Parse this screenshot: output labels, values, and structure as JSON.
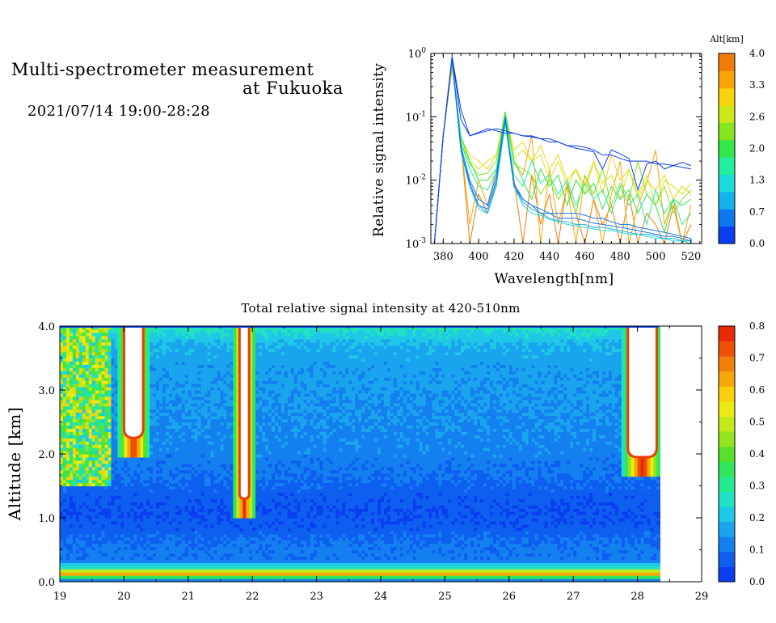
{
  "header": {
    "title_line1": "Multi-spectrometer measurement",
    "title_line2": "at Fukuoka",
    "datetime": "2021/07/14 19:00-28:28"
  },
  "chart_data": [
    {
      "type": "line",
      "xlabel": "Wavelength[nm]",
      "ylabel": "Relative signal intensity",
      "x_ticks": [
        "380",
        "400",
        "420",
        "440",
        "460",
        "480",
        "500",
        "520"
      ],
      "xlim": [
        373,
        526
      ],
      "y_scale": "log",
      "ylim": [
        0.001,
        1
      ],
      "y_ticks": [
        {
          "base": "10",
          "exp": "-3",
          "value": 0.001
        },
        {
          "base": "10",
          "exp": "-2",
          "value": 0.01
        },
        {
          "base": "10",
          "exp": "-1",
          "value": 0.1
        },
        {
          "base": "10",
          "exp": "0",
          "value": 1
        }
      ],
      "colorbar": {
        "title": "Alt[km]",
        "ticks": [
          "0.0",
          "0.7",
          "1.3",
          "2.0",
          "2.6",
          "3.3",
          "4.0"
        ],
        "colors": [
          "#0a3ff0",
          "#0e78f0",
          "#14b2ec",
          "#1adcd8",
          "#22ee9e",
          "#34e64a",
          "#84e61e",
          "#cce818",
          "#f8d20a",
          "#f6a408",
          "#f07c08"
        ]
      },
      "x": [
        375,
        380,
        385,
        390,
        395,
        400,
        405,
        410,
        415,
        420,
        425,
        430,
        435,
        440,
        445,
        450,
        455,
        460,
        465,
        470,
        475,
        480,
        485,
        490,
        495,
        500,
        505,
        510,
        515,
        520
      ],
      "series": [
        {
          "altitude_km": 0.0,
          "color": "#0a3ff0",
          "values": [
            0.001,
            0.05,
            0.9,
            0.13,
            0.05,
            0.055,
            0.06,
            0.065,
            0.06,
            0.055,
            0.05,
            0.05,
            0.045,
            0.045,
            0.04,
            0.035,
            0.035,
            0.033,
            0.03,
            0.025,
            0.025,
            0.022,
            0.02,
            0.02,
            0.02,
            0.018,
            0.018,
            0.017,
            0.016,
            0.015
          ]
        },
        {
          "altitude_km": 0.0,
          "color": "#0a3ff0",
          "values": [
            0.001,
            0.05,
            0.9,
            0.09,
            0.05,
            0.057,
            0.065,
            0.06,
            0.055,
            0.055,
            0.05,
            0.048,
            0.045,
            0.04,
            0.04,
            0.035,
            0.032,
            0.03,
            0.028,
            0.015,
            0.03,
            0.026,
            0.022,
            0.007,
            0.018,
            0.02,
            0.015,
            0.017,
            0.019,
            0.017
          ]
        },
        {
          "altitude_km": 0.2,
          "color": "#0e78f0",
          "values": [
            0.001,
            0.05,
            0.85,
            0.035,
            0.01,
            0.005,
            0.004,
            0.012,
            0.1,
            0.008,
            0.005,
            0.004,
            0.0035,
            0.003,
            0.003,
            0.003,
            0.003,
            0.0028,
            0.0025,
            0.0025,
            0.0022,
            0.002,
            0.002,
            0.0018,
            0.0017,
            0.0016,
            0.0015,
            0.0014,
            0.0013,
            0.0012
          ]
        },
        {
          "altitude_km": 0.4,
          "color": "#0e78f0",
          "values": [
            0.001,
            0.05,
            0.85,
            0.03,
            0.009,
            0.004,
            0.0035,
            0.01,
            0.09,
            0.009,
            0.005,
            0.004,
            0.003,
            0.003,
            0.0025,
            0.0025,
            0.0025,
            0.0023,
            0.0021,
            0.002,
            0.0019,
            0.0018,
            0.0017,
            0.0016,
            0.0015,
            0.0014,
            0.0013,
            0.0013,
            0.0012,
            0.0011
          ]
        },
        {
          "altitude_km": 0.7,
          "color": "#14b2ec",
          "values": [
            0.001,
            0.05,
            0.8,
            0.03,
            0.008,
            0.004,
            0.003,
            0.009,
            0.085,
            0.008,
            0.0045,
            0.0035,
            0.003,
            0.0025,
            0.0023,
            0.0022,
            0.002,
            0.002,
            0.0018,
            0.0018,
            0.0017,
            0.0016,
            0.0015,
            0.0014,
            0.0014,
            0.0013,
            0.0012,
            0.0012,
            0.0011,
            0.0011
          ]
        },
        {
          "altitude_km": 1.0,
          "color": "#1adcd8",
          "values": [
            0.001,
            0.05,
            0.8,
            0.028,
            0.008,
            0.0035,
            0.003,
            0.008,
            0.08,
            0.008,
            0.004,
            0.003,
            0.0028,
            0.0024,
            0.0022,
            0.002,
            0.0019,
            0.0018,
            0.0017,
            0.0016,
            0.0016,
            0.0015,
            0.0014,
            0.0014,
            0.0013,
            0.0012,
            0.0012,
            0.0011,
            0.0011,
            0.001
          ]
        },
        {
          "altitude_km": 1.5,
          "color": "#22ee9e",
          "values": [
            0.001,
            0.05,
            0.8,
            0.04,
            0.015,
            0.008,
            0.007,
            0.014,
            0.1,
            0.012,
            0.008,
            0.02,
            0.009,
            0.012,
            0.006,
            0.01,
            0.004,
            0.009,
            0.005,
            0.007,
            0.003,
            0.008,
            0.004,
            0.006,
            0.002,
            0.007,
            0.003,
            0.005,
            0.002,
            0.003
          ]
        },
        {
          "altitude_km": 1.8,
          "color": "#34e64a",
          "values": [
            0.001,
            0.05,
            0.75,
            0.05,
            0.02,
            0.01,
            0.01,
            0.015,
            0.12,
            0.02,
            0.01,
            0.005,
            0.015,
            0.008,
            0.012,
            0.004,
            0.01,
            0.006,
            0.009,
            0.0035,
            0.008,
            0.005,
            0.007,
            0.003,
            0.006,
            0.004,
            0.0015,
            0.005,
            0.004,
            0.005
          ]
        },
        {
          "altitude_km": 2.2,
          "color": "#84e61e",
          "values": [
            0.001,
            0.05,
            0.75,
            0.04,
            0.018,
            0.012,
            0.013,
            0.02,
            0.11,
            0.018,
            0.015,
            0.012,
            0.006,
            0.01,
            0.005,
            0.008,
            0.003,
            0.012,
            0.006,
            0.015,
            0.004,
            0.009,
            0.005,
            0.02,
            0.006,
            0.004,
            0.008,
            0.003,
            0.005,
            0.007
          ]
        },
        {
          "altitude_km": 2.5,
          "color": "#cce818",
          "values": [
            0.001,
            0.05,
            0.7,
            0.045,
            0.02,
            0.015,
            0.02,
            0.025,
            0.12,
            0.022,
            0.03,
            0.02,
            0.025,
            0.01,
            0.02,
            0.008,
            0.015,
            0.006,
            0.02,
            0.009,
            0.012,
            0.005,
            0.015,
            0.006,
            0.012,
            0.004,
            0.01,
            0.008,
            0.006,
            0.009
          ]
        },
        {
          "altitude_km": 3.0,
          "color": "#f8d20a",
          "values": [
            0.001,
            0.05,
            0.7,
            0.045,
            0.025,
            0.02,
            0.015,
            0.025,
            0.11,
            0.03,
            0.04,
            0.02,
            0.035,
            0.015,
            0.025,
            0.01,
            0.015,
            0.008,
            0.02,
            0.006,
            0.025,
            0.01,
            0.015,
            0.005,
            0.01,
            0.007,
            0.012,
            0.005,
            0.008,
            0.006
          ]
        },
        {
          "altitude_km": 3.4,
          "color": "#f6a408",
          "values": [
            0.001,
            0.05,
            0.65,
            0.04,
            0.002,
            0.01,
            0.004,
            0.015,
            0.1,
            0.02,
            0.012,
            0.05,
            0.001,
            0.015,
            0.002,
            0.008,
            0.001,
            0.012,
            0.005,
            0.001,
            0.006,
            0.02,
            0.001,
            0.004,
            0.009,
            0.03,
            0.002,
            0.005,
            0.001,
            0.004
          ]
        },
        {
          "altitude_km": 3.8,
          "color": "#f07c08",
          "values": [
            0.001,
            0.05,
            0.6,
            0.04,
            0.001,
            0.006,
            0.003,
            0.008,
            0.09,
            0.01,
            0.001,
            0.012,
            0.002,
            0.006,
            0.001,
            0.009,
            0.003,
            0.001,
            0.005,
            0.002,
            0.004,
            0.001,
            0.006,
            0.001,
            0.003,
            0.002,
            0.001,
            0.004,
            0.001,
            0.002
          ]
        }
      ]
    },
    {
      "type": "heatmap",
      "title": "Total relative signal intensity at 420-510nm",
      "ylabel": "Altitude [km]",
      "x_ticks": [
        "19",
        "20",
        "21",
        "22",
        "23",
        "24",
        "25",
        "26",
        "27",
        "28",
        "29"
      ],
      "xlim": [
        19,
        29
      ],
      "data_end_x": 28.33,
      "y_ticks": [
        "0.0",
        "1.0",
        "2.0",
        "3.0",
        "4.0"
      ],
      "ylim": [
        0,
        4
      ],
      "colorbar": {
        "ticks": [
          "0.0",
          "0.1",
          "0.2",
          "0.3",
          "0.4",
          "0.5",
          "0.6",
          "0.7",
          "0.8"
        ],
        "colors": [
          "#0a3ff0",
          "#0e5ef0",
          "#1480f0",
          "#1aa4ee",
          "#1ec8e6",
          "#22e0c4",
          "#26ea90",
          "#30e65a",
          "#58e02a",
          "#92e41c",
          "#c4e81a",
          "#ecea14",
          "#f8d00c",
          "#f6a808",
          "#f28008",
          "#ee5008",
          "#e82a08"
        ]
      },
      "altitude_km": [
        0.0,
        0.1,
        0.15,
        0.2,
        0.25,
        0.3,
        0.5,
        0.8,
        1.1,
        1.4,
        1.7,
        2.0,
        2.3,
        2.6,
        3.0,
        3.4,
        3.7,
        3.95,
        4.0
      ],
      "baseline_intensity": [
        0.0,
        0.5,
        0.8,
        0.22,
        0.28,
        0.1,
        0.11,
        0.07,
        0.05,
        0.07,
        0.1,
        0.12,
        0.13,
        0.14,
        0.15,
        0.16,
        0.18,
        0.25,
        0.3
      ],
      "saturated_regions": [
        {
          "x": [
            20.0,
            20.3
          ],
          "y_from_km": 2.25,
          "y_to_km": 4.0
        },
        {
          "x": [
            21.8,
            21.95
          ],
          "y_from_km": 1.3,
          "y_to_km": 4.0
        },
        {
          "x": [
            27.85,
            28.3
          ],
          "y_from_km": 1.95,
          "y_to_km": 4.0
        }
      ]
    }
  ]
}
